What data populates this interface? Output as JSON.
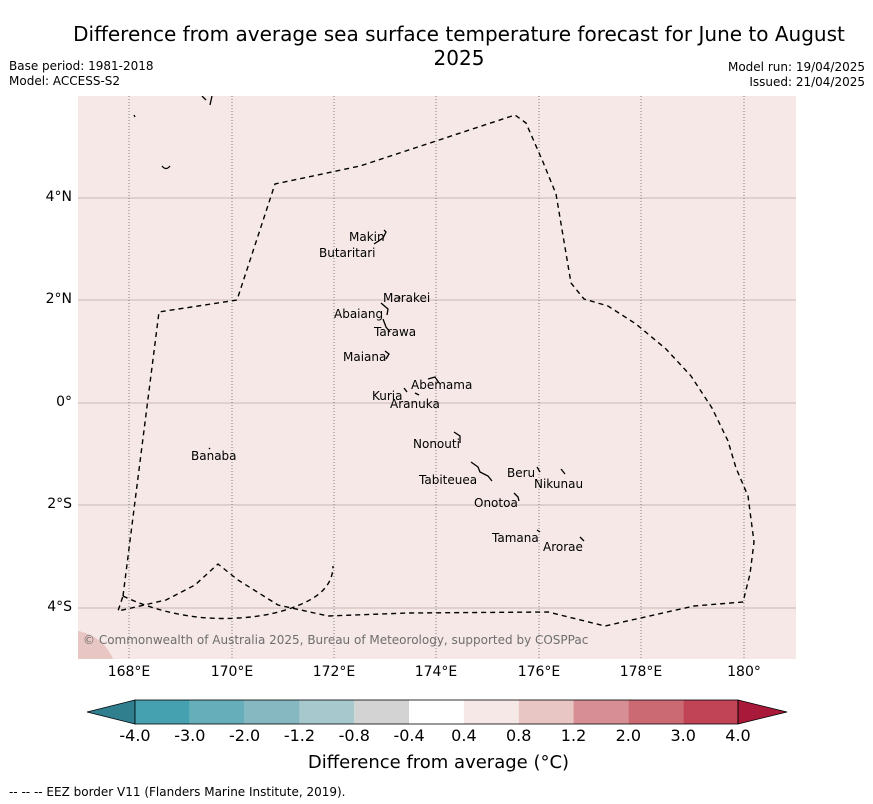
{
  "title": "Difference from average sea surface temperature forecast for June to August 2025",
  "base_period": "Base period: 1981-2018",
  "model": "Model: ACCESS-S2",
  "model_run": "Model run: 19/04/2025",
  "issued": "Issued: 21/04/2025",
  "copyright": "© Commonwealth of Australia 2025, Bureau of Meteorology, supported by COSPPac",
  "footer": "--  --  -- EEZ border V11 (Flanders Marine Institute, 2019).",
  "colorbar": {
    "title": "Difference from average (°C)",
    "ticks": [
      "-4.0",
      "-3.0",
      "-2.0",
      "-1.2",
      "-0.8",
      "-0.4",
      "0.4",
      "0.8",
      "1.2",
      "2.0",
      "3.0",
      "4.0"
    ],
    "colors": [
      "#2f7f8f",
      "#45a0b0",
      "#66aeba",
      "#86b8c1",
      "#a7c8cc",
      "#d3d3d3",
      "#ffffff",
      "#f5e8e7",
      "#e8c6c3",
      "#d88e95",
      "#cc6a74",
      "#c04455",
      "#a8193a"
    ]
  },
  "map": {
    "background": "#f5e8e7",
    "lat_labels": [
      "4°N",
      "2°N",
      "0°",
      "2°S",
      "4°S"
    ],
    "lon_labels": [
      "168°E",
      "170°E",
      "172°E",
      "174°E",
      "176°E",
      "178°E",
      "180°"
    ],
    "extent": {
      "lon_min": 167,
      "lon_max": 181,
      "lat_min": -5,
      "lat_max": 6
    },
    "islands": [
      "Makin",
      "Butaritari",
      "Marakei",
      "Abaiang",
      "Tarawa",
      "Maiana",
      "Abemama",
      "Kuria",
      "Aranuka",
      "Nonouti",
      "Tabiteuea",
      "Beru",
      "Nikunau",
      "Onotoa",
      "Tamana",
      "Arorae",
      "Banaba"
    ]
  }
}
